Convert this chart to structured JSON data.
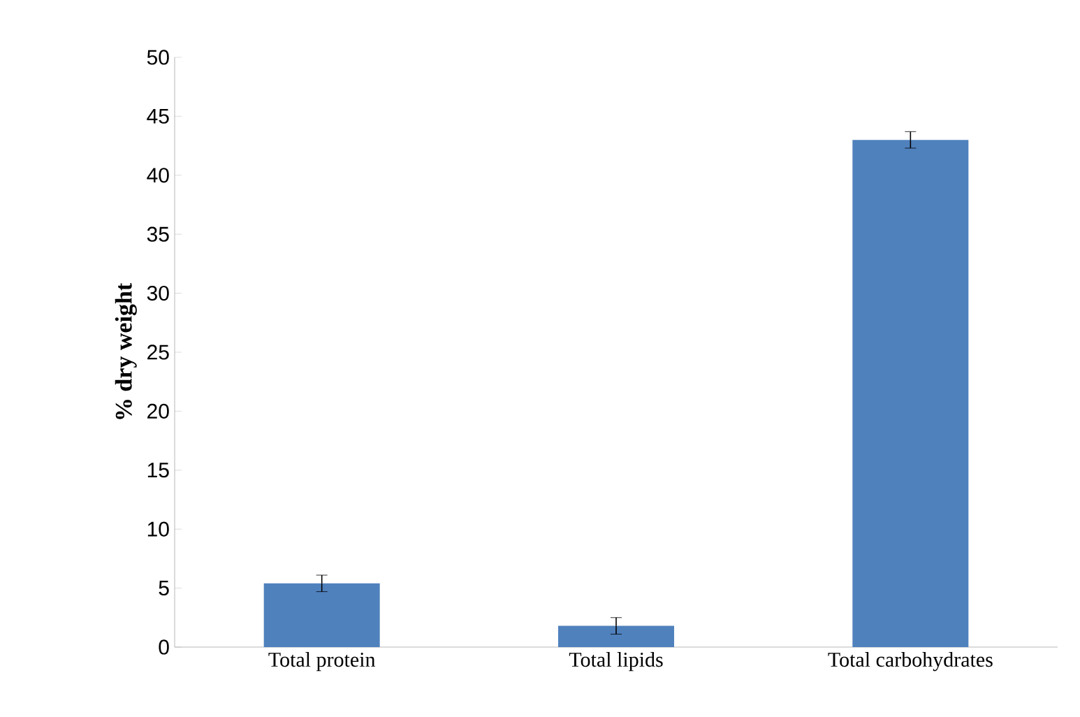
{
  "chart_data": {
    "type": "bar",
    "ylabel": "% dry weight",
    "categories": [
      "Total protein",
      "Total lipids",
      "Total carbohydrates"
    ],
    "values": [
      5.4,
      1.8,
      43.0
    ],
    "errors": [
      0.7,
      0.7,
      0.7
    ],
    "color": "#4f81bd",
    "ylim": [
      0,
      50
    ],
    "yticks": [
      0,
      5,
      10,
      15,
      20,
      25,
      30,
      35,
      40,
      45,
      50
    ]
  }
}
